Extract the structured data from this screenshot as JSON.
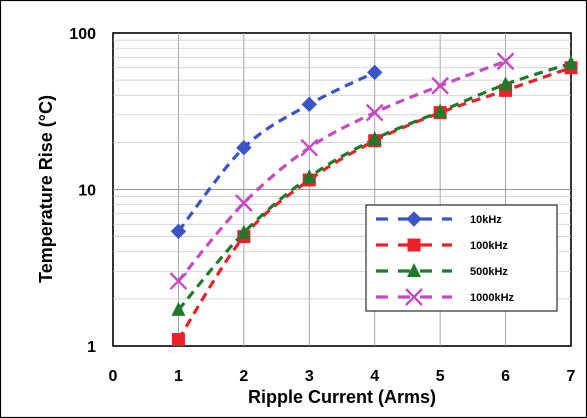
{
  "chart_data": {
    "type": "line",
    "title": "",
    "xlabel": "Ripple Current (Arms)",
    "ylabel": "Temperature Rise (°C)",
    "xlim": [
      0,
      7
    ],
    "ylim": [
      1,
      100
    ],
    "yscale": "log",
    "x_ticks": [
      "0",
      "1",
      "2",
      "3",
      "4",
      "5",
      "6",
      "7"
    ],
    "y_ticks": [
      "1",
      "10",
      "100"
    ],
    "grid": true,
    "legend_position": "right",
    "series": [
      {
        "name": "10kHz",
        "color": "#3b55c4",
        "marker": "diamond",
        "x": [
          1,
          2,
          3,
          4
        ],
        "y": [
          5.4,
          18.5,
          35,
          56
        ]
      },
      {
        "name": "100kHz",
        "color": "#e8212a",
        "marker": "square",
        "x": [
          1,
          2,
          3,
          4,
          5,
          6,
          7
        ],
        "y": [
          1.1,
          5,
          11.5,
          20.5,
          31,
          43,
          60
        ]
      },
      {
        "name": "500kHz",
        "color": "#1f7a2c",
        "marker": "triangle",
        "x": [
          1,
          2,
          3,
          4,
          5,
          6,
          7
        ],
        "y": [
          1.7,
          5.3,
          12,
          21,
          31.5,
          47,
          64
        ]
      },
      {
        "name": "1000kHz",
        "color": "#c34cc0",
        "marker": "x",
        "x": [
          1,
          2,
          3,
          4,
          5,
          6
        ],
        "y": [
          2.6,
          8.2,
          18.5,
          31,
          46,
          66
        ]
      }
    ]
  }
}
